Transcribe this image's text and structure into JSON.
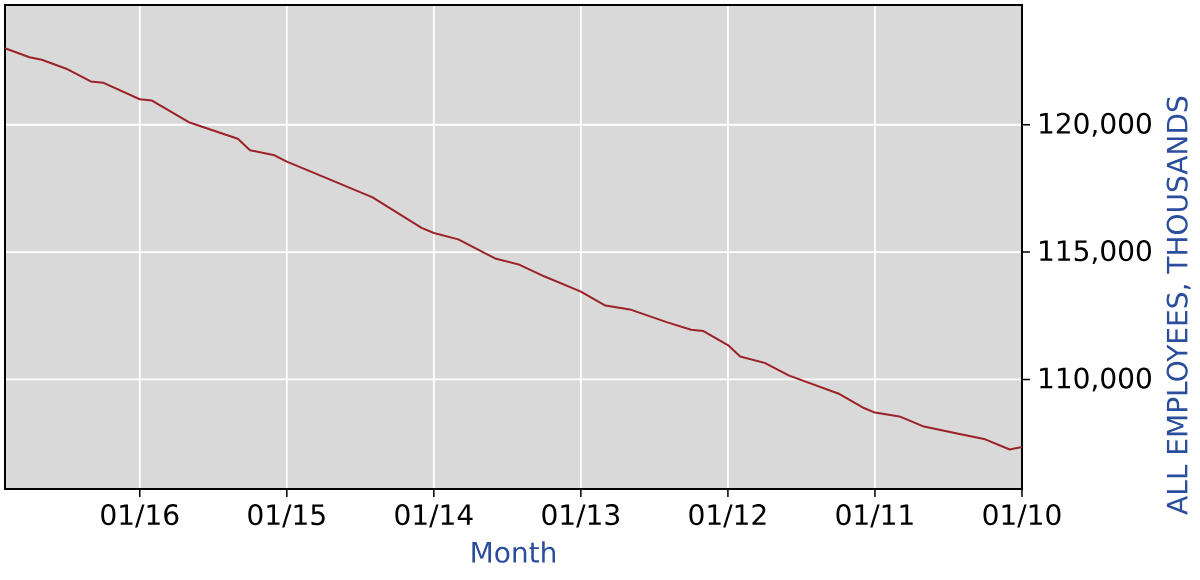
{
  "chart_data": {
    "type": "line",
    "xlabel": "Month",
    "ylabel": "ALL EMPLOYEES, THOUSANDS",
    "x": [
      "2010-01",
      "2010-02",
      "2010-04",
      "2010-06",
      "2010-09",
      "2010-11",
      "2011-01",
      "2011-02",
      "2011-04",
      "2011-08",
      "2011-10",
      "2011-12",
      "2012-01",
      "2012-03",
      "2012-04",
      "2012-06",
      "2012-09",
      "2012-11",
      "2013-01",
      "2013-04",
      "2013-06",
      "2013-08",
      "2013-11",
      "2014-01",
      "2014-02",
      "2014-06",
      "2014-10",
      "2015-01",
      "2015-02",
      "2015-04",
      "2015-05",
      "2015-09",
      "2015-12",
      "2016-01",
      "2016-04",
      "2016-05",
      "2016-07",
      "2016-09",
      "2016-10",
      "2016-12"
    ],
    "values": [
      107350,
      107250,
      107650,
      107850,
      108150,
      108550,
      108700,
      108900,
      109450,
      110150,
      110650,
      110900,
      111350,
      111900,
      111950,
      112250,
      112750,
      112900,
      113450,
      114050,
      114500,
      114750,
      115500,
      115750,
      115950,
      117150,
      117950,
      118550,
      118800,
      119000,
      119450,
      120100,
      120950,
      121000,
      121650,
      121700,
      122200,
      122550,
      122650,
      123000
    ],
    "color": "#9b2226",
    "xlim": [
      "2016-12",
      "2010-01"
    ],
    "xticks": [
      {
        "value": "2010-01",
        "label": "01/10"
      },
      {
        "value": "2011-01",
        "label": "01/11"
      },
      {
        "value": "2012-01",
        "label": "01/12"
      },
      {
        "value": "2013-01",
        "label": "01/13"
      },
      {
        "value": "2014-01",
        "label": "01/14"
      },
      {
        "value": "2015-01",
        "label": "01/15"
      },
      {
        "value": "2016-01",
        "label": "01/16"
      }
    ],
    "ylim": [
      105700,
      124700
    ],
    "yticks": [
      {
        "value": 110000,
        "label": "110,000"
      },
      {
        "value": 115000,
        "label": "115,000"
      },
      {
        "value": 120000,
        "label": "120,000"
      }
    ],
    "grid": true
  }
}
